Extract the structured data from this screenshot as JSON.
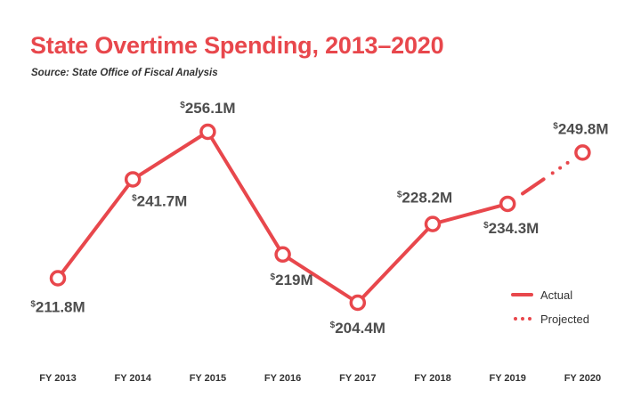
{
  "chart_data": {
    "type": "line",
    "title": "State Overtime Spending, 2013–2020",
    "subtitle": "Source: State Office of Fiscal Analysis",
    "categories": [
      "FY 2013",
      "FY 2014",
      "FY 2015",
      "FY 2016",
      "FY 2017",
      "FY 2018",
      "FY 2019",
      "FY 2020"
    ],
    "values": [
      211.8,
      241.7,
      256.1,
      219,
      204.4,
      228.2,
      234.3,
      249.8
    ],
    "data_labels": [
      "211.8M",
      "241.7M",
      "256.1M",
      "219M",
      "204.4M",
      "228.2M",
      "234.3M",
      "249.8M"
    ],
    "currency_symbol": "$",
    "unit": "$M",
    "series": [
      {
        "name": "Actual",
        "style": "solid",
        "range": [
          "FY 2013",
          "FY 2019"
        ]
      },
      {
        "name": "Projected",
        "style": "dotted",
        "range": [
          "FY 2019",
          "FY 2020"
        ]
      }
    ],
    "legend": {
      "position": "bottom-right",
      "items": [
        "Actual",
        "Projected"
      ]
    },
    "grid": false,
    "y_axis_visible": false,
    "ylim": [
      195,
      262
    ],
    "color": "#e8474c"
  }
}
